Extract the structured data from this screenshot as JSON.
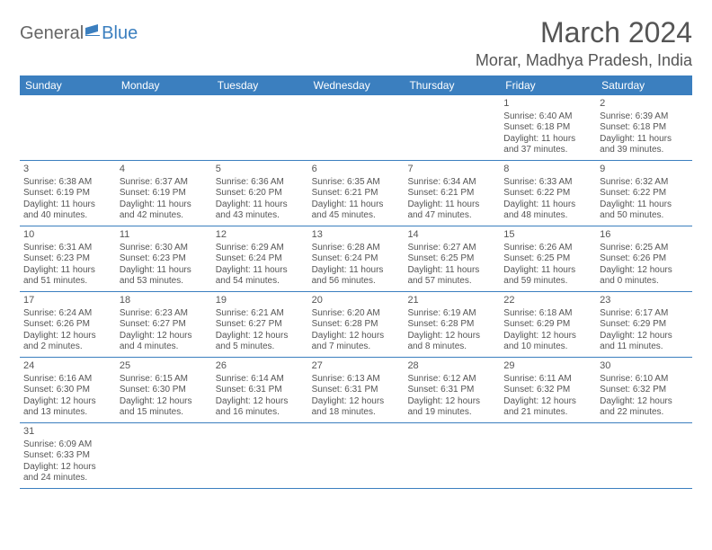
{
  "logo": {
    "text1": "General",
    "text2": "Blue"
  },
  "title": "March 2024",
  "location": "Morar, Madhya Pradesh, India",
  "header_bg": "#3b7fbf",
  "text_color": "#555555",
  "dayNames": [
    "Sunday",
    "Monday",
    "Tuesday",
    "Wednesday",
    "Thursday",
    "Friday",
    "Saturday"
  ],
  "weeks": [
    [
      null,
      null,
      null,
      null,
      null,
      {
        "n": "1",
        "sr": "Sunrise: 6:40 AM",
        "ss": "Sunset: 6:18 PM",
        "dl": "Daylight: 11 hours and 37 minutes."
      },
      {
        "n": "2",
        "sr": "Sunrise: 6:39 AM",
        "ss": "Sunset: 6:18 PM",
        "dl": "Daylight: 11 hours and 39 minutes."
      }
    ],
    [
      {
        "n": "3",
        "sr": "Sunrise: 6:38 AM",
        "ss": "Sunset: 6:19 PM",
        "dl": "Daylight: 11 hours and 40 minutes."
      },
      {
        "n": "4",
        "sr": "Sunrise: 6:37 AM",
        "ss": "Sunset: 6:19 PM",
        "dl": "Daylight: 11 hours and 42 minutes."
      },
      {
        "n": "5",
        "sr": "Sunrise: 6:36 AM",
        "ss": "Sunset: 6:20 PM",
        "dl": "Daylight: 11 hours and 43 minutes."
      },
      {
        "n": "6",
        "sr": "Sunrise: 6:35 AM",
        "ss": "Sunset: 6:21 PM",
        "dl": "Daylight: 11 hours and 45 minutes."
      },
      {
        "n": "7",
        "sr": "Sunrise: 6:34 AM",
        "ss": "Sunset: 6:21 PM",
        "dl": "Daylight: 11 hours and 47 minutes."
      },
      {
        "n": "8",
        "sr": "Sunrise: 6:33 AM",
        "ss": "Sunset: 6:22 PM",
        "dl": "Daylight: 11 hours and 48 minutes."
      },
      {
        "n": "9",
        "sr": "Sunrise: 6:32 AM",
        "ss": "Sunset: 6:22 PM",
        "dl": "Daylight: 11 hours and 50 minutes."
      }
    ],
    [
      {
        "n": "10",
        "sr": "Sunrise: 6:31 AM",
        "ss": "Sunset: 6:23 PM",
        "dl": "Daylight: 11 hours and 51 minutes."
      },
      {
        "n": "11",
        "sr": "Sunrise: 6:30 AM",
        "ss": "Sunset: 6:23 PM",
        "dl": "Daylight: 11 hours and 53 minutes."
      },
      {
        "n": "12",
        "sr": "Sunrise: 6:29 AM",
        "ss": "Sunset: 6:24 PM",
        "dl": "Daylight: 11 hours and 54 minutes."
      },
      {
        "n": "13",
        "sr": "Sunrise: 6:28 AM",
        "ss": "Sunset: 6:24 PM",
        "dl": "Daylight: 11 hours and 56 minutes."
      },
      {
        "n": "14",
        "sr": "Sunrise: 6:27 AM",
        "ss": "Sunset: 6:25 PM",
        "dl": "Daylight: 11 hours and 57 minutes."
      },
      {
        "n": "15",
        "sr": "Sunrise: 6:26 AM",
        "ss": "Sunset: 6:25 PM",
        "dl": "Daylight: 11 hours and 59 minutes."
      },
      {
        "n": "16",
        "sr": "Sunrise: 6:25 AM",
        "ss": "Sunset: 6:26 PM",
        "dl": "Daylight: 12 hours and 0 minutes."
      }
    ],
    [
      {
        "n": "17",
        "sr": "Sunrise: 6:24 AM",
        "ss": "Sunset: 6:26 PM",
        "dl": "Daylight: 12 hours and 2 minutes."
      },
      {
        "n": "18",
        "sr": "Sunrise: 6:23 AM",
        "ss": "Sunset: 6:27 PM",
        "dl": "Daylight: 12 hours and 4 minutes."
      },
      {
        "n": "19",
        "sr": "Sunrise: 6:21 AM",
        "ss": "Sunset: 6:27 PM",
        "dl": "Daylight: 12 hours and 5 minutes."
      },
      {
        "n": "20",
        "sr": "Sunrise: 6:20 AM",
        "ss": "Sunset: 6:28 PM",
        "dl": "Daylight: 12 hours and 7 minutes."
      },
      {
        "n": "21",
        "sr": "Sunrise: 6:19 AM",
        "ss": "Sunset: 6:28 PM",
        "dl": "Daylight: 12 hours and 8 minutes."
      },
      {
        "n": "22",
        "sr": "Sunrise: 6:18 AM",
        "ss": "Sunset: 6:29 PM",
        "dl": "Daylight: 12 hours and 10 minutes."
      },
      {
        "n": "23",
        "sr": "Sunrise: 6:17 AM",
        "ss": "Sunset: 6:29 PM",
        "dl": "Daylight: 12 hours and 11 minutes."
      }
    ],
    [
      {
        "n": "24",
        "sr": "Sunrise: 6:16 AM",
        "ss": "Sunset: 6:30 PM",
        "dl": "Daylight: 12 hours and 13 minutes."
      },
      {
        "n": "25",
        "sr": "Sunrise: 6:15 AM",
        "ss": "Sunset: 6:30 PM",
        "dl": "Daylight: 12 hours and 15 minutes."
      },
      {
        "n": "26",
        "sr": "Sunrise: 6:14 AM",
        "ss": "Sunset: 6:31 PM",
        "dl": "Daylight: 12 hours and 16 minutes."
      },
      {
        "n": "27",
        "sr": "Sunrise: 6:13 AM",
        "ss": "Sunset: 6:31 PM",
        "dl": "Daylight: 12 hours and 18 minutes."
      },
      {
        "n": "28",
        "sr": "Sunrise: 6:12 AM",
        "ss": "Sunset: 6:31 PM",
        "dl": "Daylight: 12 hours and 19 minutes."
      },
      {
        "n": "29",
        "sr": "Sunrise: 6:11 AM",
        "ss": "Sunset: 6:32 PM",
        "dl": "Daylight: 12 hours and 21 minutes."
      },
      {
        "n": "30",
        "sr": "Sunrise: 6:10 AM",
        "ss": "Sunset: 6:32 PM",
        "dl": "Daylight: 12 hours and 22 minutes."
      }
    ],
    [
      {
        "n": "31",
        "sr": "Sunrise: 6:09 AM",
        "ss": "Sunset: 6:33 PM",
        "dl": "Daylight: 12 hours and 24 minutes."
      },
      null,
      null,
      null,
      null,
      null,
      null
    ]
  ]
}
